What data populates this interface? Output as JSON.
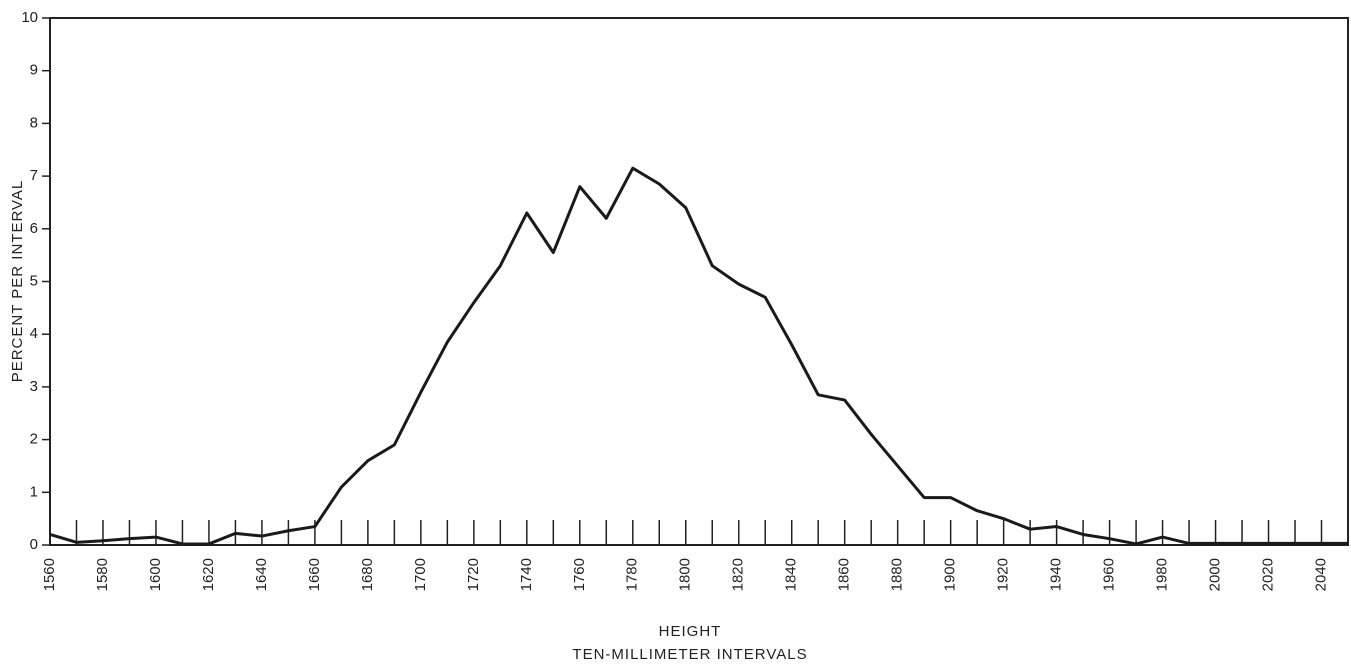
{
  "chart_data": {
    "type": "line",
    "ylabel": "PERCENT PER INTERVAL",
    "xlabel": [
      "HEIGHT",
      "TEN-MILLIMETER INTERVALS"
    ],
    "x": [
      1560,
      1570,
      1580,
      1590,
      1600,
      1610,
      1620,
      1630,
      1640,
      1650,
      1660,
      1670,
      1680,
      1690,
      1700,
      1710,
      1720,
      1730,
      1740,
      1750,
      1760,
      1770,
      1780,
      1790,
      1800,
      1810,
      1820,
      1830,
      1840,
      1850,
      1860,
      1870,
      1880,
      1890,
      1900,
      1910,
      1920,
      1930,
      1940,
      1950,
      1960,
      1970,
      1980,
      1990,
      2000,
      2010,
      2020,
      2030,
      2040,
      2050
    ],
    "series": [
      {
        "color": "#1a1a1a",
        "values": [
          0.2,
          0.05,
          0.08,
          0.12,
          0.15,
          0.02,
          0.02,
          0.22,
          0.17,
          0.27,
          0.35,
          1.1,
          1.6,
          1.9,
          2.9,
          3.85,
          4.6,
          5.3,
          6.3,
          5.55,
          6.8,
          6.2,
          7.15,
          6.85,
          6.4,
          5.3,
          4.95,
          4.7,
          3.8,
          2.85,
          2.75,
          2.1,
          1.5,
          0.9,
          0.9,
          0.65,
          0.5,
          0.3,
          0.35,
          0.2,
          0.12,
          0.02,
          0.15,
          0.03,
          0.03,
          0.03,
          0.03,
          0.03,
          0.03,
          0.03
        ]
      }
    ],
    "xlim": [
      1560,
      2050
    ],
    "ylim": [
      0,
      10
    ],
    "xticks": [
      1560,
      1580,
      1600,
      1620,
      1640,
      1660,
      1680,
      1700,
      1720,
      1740,
      1760,
      1780,
      1800,
      1820,
      1840,
      1860,
      1880,
      1900,
      1920,
      1940,
      1960,
      1980,
      2000,
      2020,
      2040
    ],
    "xminorticks": [
      1570,
      1580,
      1590,
      1600,
      1610,
      1620,
      1630,
      1640,
      1650,
      1660,
      1670,
      1680,
      1690,
      1700,
      1710,
      1720,
      1730,
      1740,
      1750,
      1760,
      1770,
      1780,
      1790,
      1800,
      1810,
      1820,
      1830,
      1840,
      1850,
      1860,
      1870,
      1880,
      1890,
      1900,
      1910,
      1920,
      1930,
      1940,
      1950,
      1960,
      1970,
      1980,
      1990,
      2000,
      2010,
      2020,
      2030,
      2040
    ],
    "yticks": [
      0,
      1,
      2,
      3,
      4,
      5,
      6,
      7,
      8,
      9,
      10
    ]
  }
}
